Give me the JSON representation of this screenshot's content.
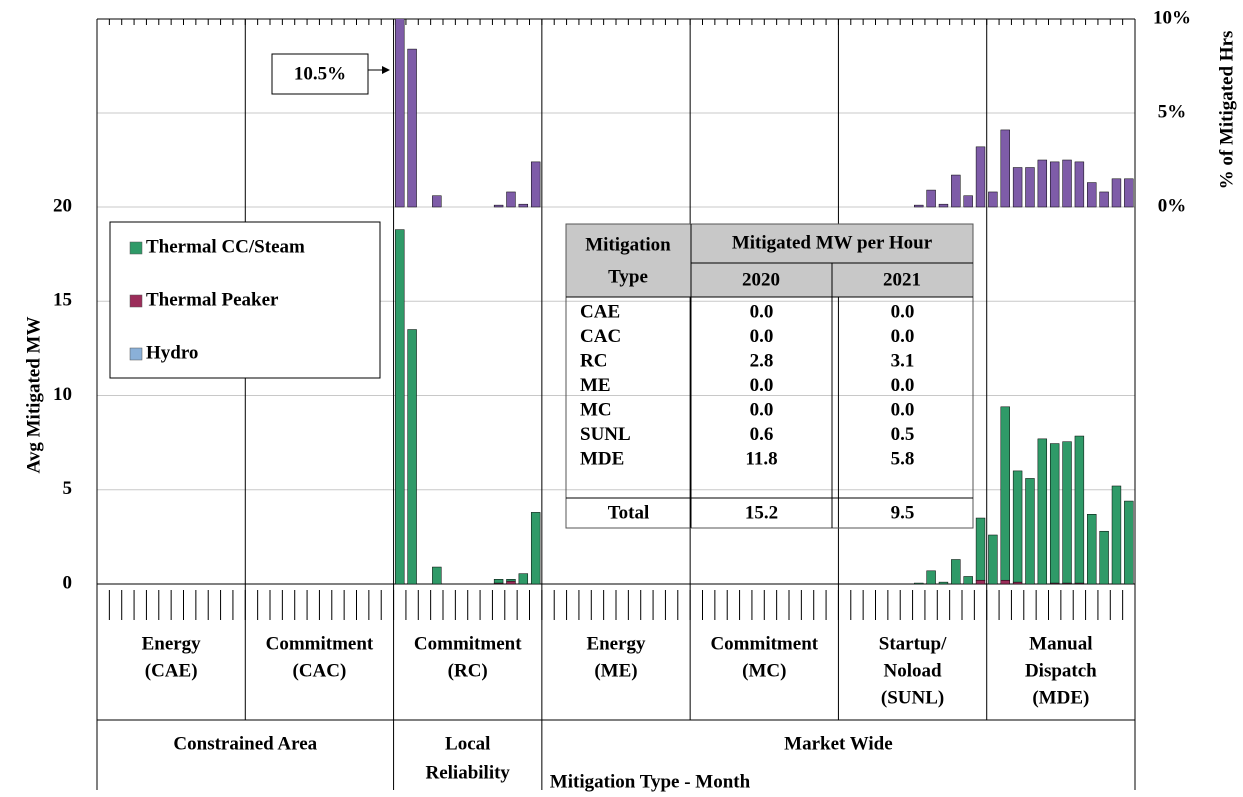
{
  "chart_data": {
    "type": "bar",
    "y_label": "Avg Mitigated MW",
    "y2_label": "% of Mitigated Hrs",
    "x_label": "Mitigation Type - Month",
    "ylim": [
      0,
      20
    ],
    "yticks": [
      0,
      5,
      10,
      15,
      20
    ],
    "y2lim": [
      0,
      10
    ],
    "y2ticks": [
      {
        "value": 0,
        "label": "0%"
      },
      {
        "value": 5,
        "label": "5%"
      },
      {
        "value": 10,
        "label": "10%"
      }
    ],
    "grid": true,
    "legend": "upper left",
    "sections": [
      {
        "label": [
          "Constrained Area"
        ],
        "groups": [
          {
            "label": [
              "Energy",
              "(CAE)"
            ]
          },
          {
            "label": [
              "Commitment",
              "(CAC)"
            ]
          }
        ]
      },
      {
        "label": [
          "Local",
          "Reliability"
        ],
        "groups": [
          {
            "label": [
              "Commitment",
              "(RC)"
            ]
          }
        ]
      },
      {
        "label": [
          "Market Wide"
        ],
        "groups": [
          {
            "label": [
              "Energy",
              "(ME)"
            ]
          },
          {
            "label": [
              "Commitment",
              "(MC)"
            ]
          },
          {
            "label": [
              "Startup/",
              "Noload",
              "(SUNL)"
            ]
          },
          {
            "label": [
              "Manual",
              "Dispatch",
              "(MDE)"
            ]
          }
        ]
      }
    ],
    "series": [
      {
        "name": "Thermal Peaker",
        "color": "#9b2d5a",
        "values": [
          0,
          0,
          0,
          0,
          0,
          0,
          0,
          0,
          0,
          0,
          0,
          0,
          0,
          0,
          0,
          0,
          0,
          0,
          0,
          0,
          0,
          0,
          0,
          0,
          0,
          0,
          0,
          0,
          0,
          0,
          0,
          0,
          0.05,
          0.15,
          0,
          0,
          0,
          0,
          0,
          0,
          0,
          0,
          0,
          0,
          0,
          0,
          0,
          0,
          0,
          0,
          0,
          0,
          0,
          0,
          0,
          0,
          0,
          0,
          0,
          0,
          0,
          0,
          0,
          0,
          0,
          0,
          0,
          0,
          0,
          0,
          0,
          0.2,
          0,
          0.2,
          0.1,
          0,
          0,
          0.05,
          0.05,
          0.05,
          0,
          0,
          0,
          0
        ]
      },
      {
        "name": "Hydro",
        "color": "#8ab0d8",
        "values": [
          0,
          0,
          0,
          0,
          0,
          0,
          0,
          0,
          0,
          0,
          0,
          0,
          0,
          0,
          0,
          0,
          0,
          0,
          0,
          0,
          0,
          0,
          0,
          0,
          0,
          0,
          0,
          0,
          0,
          0,
          0,
          0,
          0,
          0,
          0,
          0,
          0,
          0,
          0,
          0,
          0,
          0,
          0,
          0,
          0,
          0,
          0,
          0,
          0,
          0,
          0,
          0,
          0,
          0,
          0,
          0,
          0,
          0,
          0,
          0,
          0,
          0,
          0,
          0,
          0,
          0,
          0,
          0,
          0,
          0,
          0,
          0,
          0,
          0,
          0,
          0,
          0,
          0,
          0,
          0,
          0,
          0,
          0,
          0
        ]
      },
      {
        "name": "Thermal CC/Steam",
        "color": "#2f9a68",
        "values": [
          0,
          0,
          0,
          0,
          0,
          0,
          0,
          0,
          0,
          0,
          0,
          0,
          0,
          0,
          0,
          0,
          0,
          0,
          0,
          0,
          0,
          0,
          0,
          0,
          18.8,
          13.5,
          0,
          0.9,
          0,
          0,
          0,
          0,
          0.2,
          0.1,
          0.55,
          3.8,
          0,
          0,
          0,
          0,
          0,
          0,
          0,
          0,
          0,
          0,
          0,
          0,
          0,
          0,
          0,
          0,
          0,
          0,
          0,
          0,
          0,
          0,
          0,
          0,
          0,
          0,
          0,
          0,
          0,
          0,
          0.05,
          0.7,
          0.1,
          1.3,
          0.4,
          3.3,
          2.6,
          9.2,
          5.9,
          5.6,
          7.7,
          7.4,
          7.5,
          7.8,
          3.7,
          2.8,
          5.2,
          4.4
        ]
      }
    ],
    "legend_order": [
      "Thermal CC/Steam",
      "Thermal Peaker",
      "Hydro"
    ],
    "pct_series": {
      "axis": "y2",
      "color": "#7e5ca8",
      "values": [
        0,
        0,
        0,
        0,
        0,
        0,
        0,
        0,
        0,
        0,
        0,
        0,
        0,
        0,
        0,
        0,
        0,
        0,
        0,
        0,
        0,
        0,
        0,
        0,
        10.5,
        8.4,
        0,
        0.6,
        0,
        0,
        0,
        0,
        0.1,
        0.8,
        0.15,
        2.4,
        0,
        0,
        0,
        0,
        0,
        0,
        0,
        0,
        0,
        0,
        0,
        0,
        0,
        0,
        0,
        0,
        0,
        0,
        0,
        0,
        0,
        0,
        0,
        0,
        0,
        0,
        0,
        0,
        0,
        0,
        0.1,
        0.9,
        0.15,
        1.7,
        0.6,
        3.2,
        0.8,
        4.1,
        2.1,
        2.1,
        2.5,
        2.4,
        2.5,
        2.4,
        1.3,
        0.8,
        1.5,
        1.5
      ]
    },
    "annotation": "10.5%",
    "table": {
      "header": [
        [
          "Mitigation",
          "Type"
        ],
        "Mitigated MW per Hour",
        "2020",
        "2021"
      ],
      "rows": [
        [
          "CAE",
          "0.0",
          "0.0"
        ],
        [
          "CAC",
          "0.0",
          "0.0"
        ],
        [
          "RC",
          "2.8",
          "3.1"
        ],
        [
          "ME",
          "0.0",
          "0.0"
        ],
        [
          "MC",
          "0.0",
          "0.0"
        ],
        [
          "SUNL",
          "0.6",
          "0.5"
        ],
        [
          "MDE",
          "11.8",
          "5.8"
        ]
      ],
      "total": [
        "Total",
        "15.2",
        "9.5"
      ]
    }
  }
}
